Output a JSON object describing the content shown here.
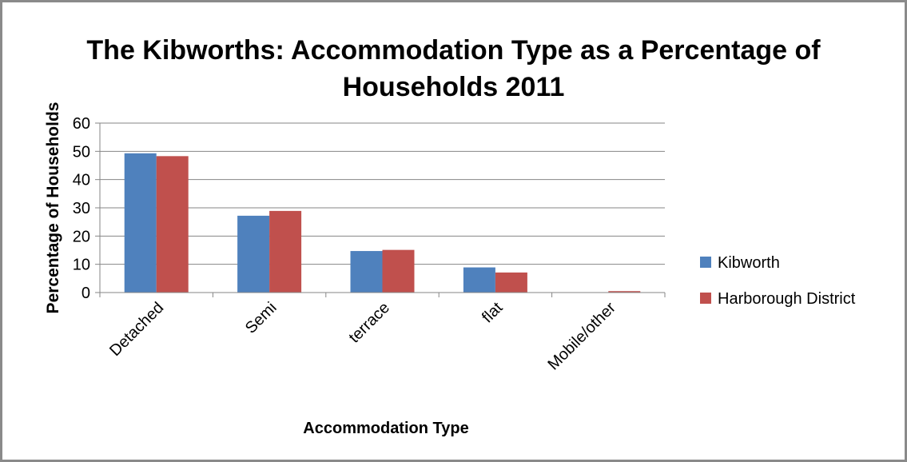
{
  "chart_data": {
    "type": "bar",
    "title": "The Kibworths: Accommodation Type as a Percentage of Households 2011",
    "title_lines": [
      "The Kibworths: Accommodation Type as a Percentage of",
      "Households 2011"
    ],
    "xlabel": "Accommodation Type",
    "ylabel": "Percentage of Households",
    "categories": [
      "Detached",
      "Semi",
      "terrace",
      "flat",
      "Mobile/other"
    ],
    "series": [
      {
        "name": "Kibworth",
        "color": "#4f81bd",
        "values": [
          49.3,
          27.2,
          14.7,
          8.9,
          0.0
        ]
      },
      {
        "name": "Harborough District",
        "color": "#c0504d",
        "values": [
          48.3,
          28.9,
          15.1,
          7.1,
          0.5
        ]
      }
    ],
    "ylim": [
      0,
      60
    ],
    "yticks": [
      0,
      10,
      20,
      30,
      40,
      50,
      60
    ],
    "grid": true,
    "legend_position": "right"
  }
}
